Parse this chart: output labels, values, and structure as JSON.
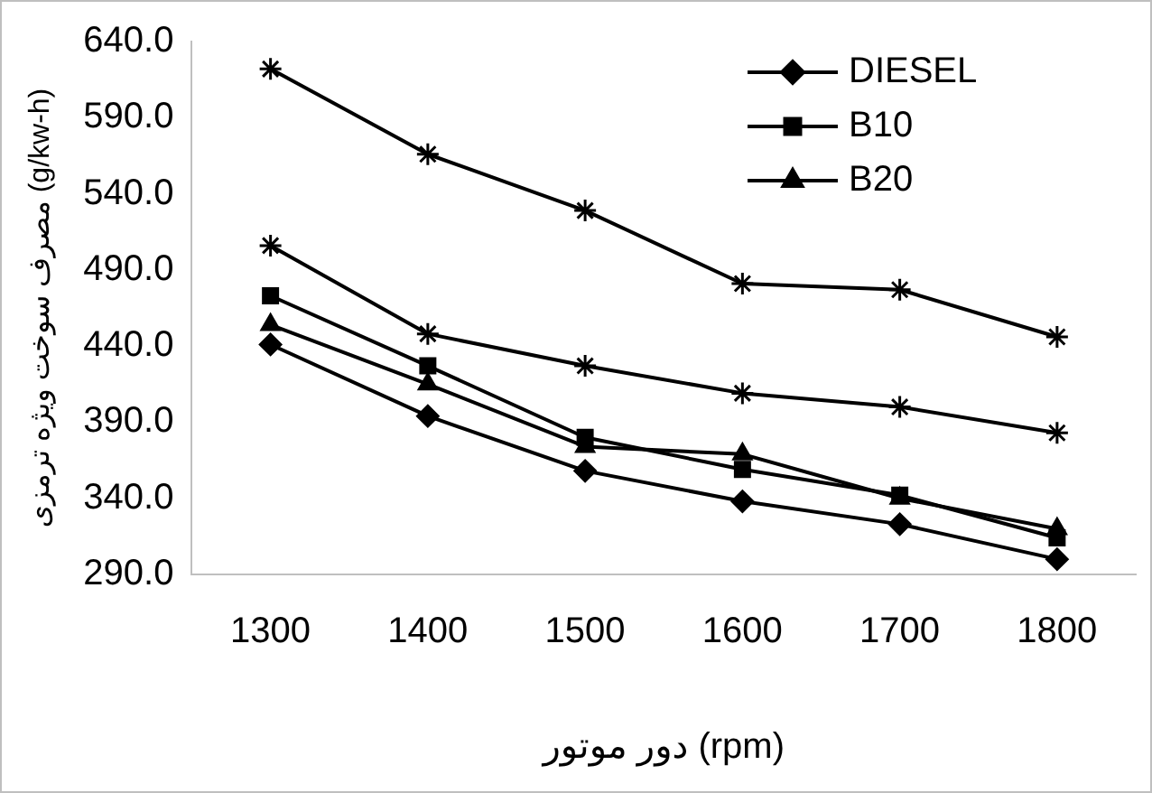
{
  "chart_data": {
    "type": "line",
    "ylabel": "مصرف سوخت ویژه ترمزی (g/kw-h)",
    "xlabel": "دور موتور (rpm)",
    "categories": [
      "1300",
      "1400",
      "1500",
      "1600",
      "1700",
      "1800"
    ],
    "series": [
      {
        "name": "DIESEL",
        "color": "#000000",
        "marker": "diamond",
        "values": [
          441,
          394,
          358,
          338,
          323,
          300
        ]
      },
      {
        "name": "B10",
        "color": "#000000",
        "marker": "square",
        "values": [
          473,
          427,
          380,
          359,
          342,
          314
        ]
      },
      {
        "name": "B20",
        "color": "#000000",
        "marker": "triangle",
        "values": [
          454,
          415,
          374,
          369,
          340,
          320
        ]
      },
      {
        "color": "#000000",
        "marker": "cross",
        "values": [
          506,
          448,
          427,
          409,
          400,
          383
        ]
      },
      {
        "color": "#000000",
        "marker": "cross",
        "values": [
          622,
          566,
          529,
          481,
          477,
          446
        ]
      }
    ],
    "ylim": [
      290,
      640
    ],
    "yticks": [
      {
        "value": 290,
        "label": "290.0"
      },
      {
        "value": 340,
        "label": "340.0"
      },
      {
        "value": 390,
        "label": "390.0"
      },
      {
        "value": 440,
        "label": "440.0"
      },
      {
        "value": 490,
        "label": "490.0"
      },
      {
        "value": 540,
        "label": "540.0"
      },
      {
        "value": 590,
        "label": "590.0"
      },
      {
        "value": 640,
        "label": "640.0"
      }
    ],
    "grid": false,
    "legend": "top right",
    "line_style": "solid"
  }
}
